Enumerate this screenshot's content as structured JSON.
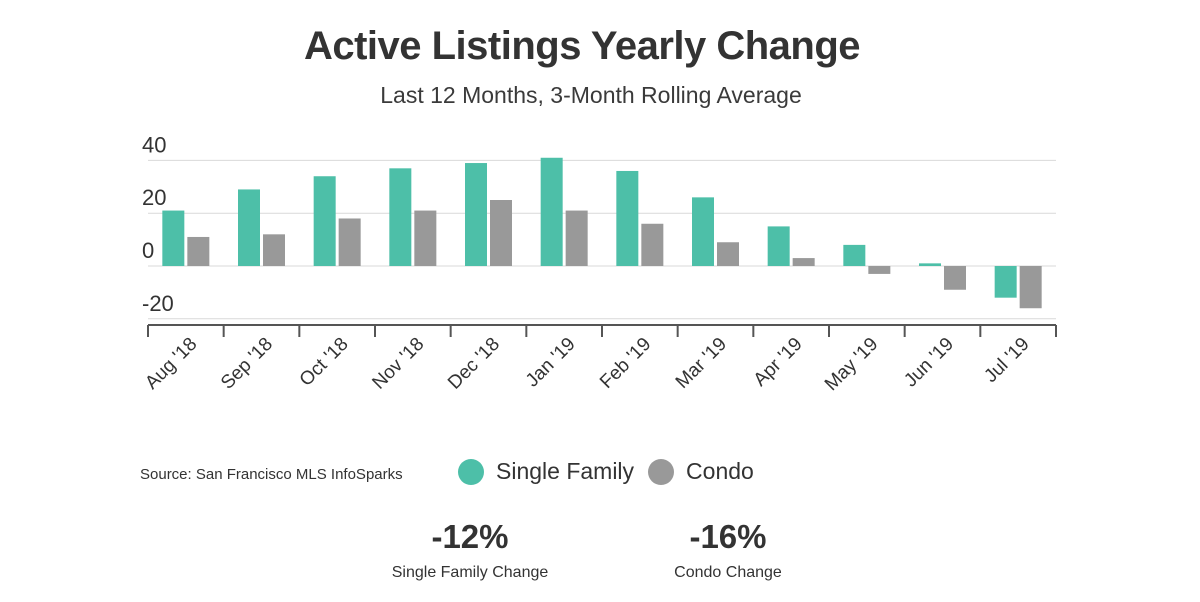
{
  "title": "Active Listings Yearly Change",
  "subtitle": "Last 12 Months, 3-Month Rolling Average",
  "source": "Source:  San Francisco MLS InfoSparks",
  "colors": {
    "single_family": "#4dbfa8",
    "condo": "#999999",
    "grid": "#d9d9d9",
    "axis": "#555555"
  },
  "legend": {
    "single_family": "Single Family",
    "condo": "Condo"
  },
  "stats": [
    {
      "value": "-12%",
      "label": "Single Family  Change"
    },
    {
      "value": "-16%",
      "label": "Condo Change"
    }
  ],
  "chart_data": {
    "type": "bar",
    "title": "Active Listings Yearly Change",
    "subtitle": "Last 12 Months, 3-Month Rolling Average",
    "categories": [
      "Aug '18",
      "Sep '18",
      "Oct '18",
      "Nov '18",
      "Dec '18",
      "Jan '19",
      "Feb '19",
      "Mar '19",
      "Apr '19",
      "May '19",
      "Jun '19",
      "Jul '19"
    ],
    "series": [
      {
        "name": "Single Family",
        "values": [
          21,
          29,
          34,
          37,
          39,
          41,
          36,
          26,
          15,
          8,
          1,
          -12
        ]
      },
      {
        "name": "Condo",
        "values": [
          11,
          12,
          18,
          21,
          25,
          21,
          16,
          9,
          3,
          -3,
          -9,
          -16
        ]
      }
    ],
    "yticks": [
      40,
      20,
      0,
      -20
    ],
    "ylim": [
      -20,
      40
    ],
    "grid": true,
    "legend_position": "bottom-center"
  }
}
